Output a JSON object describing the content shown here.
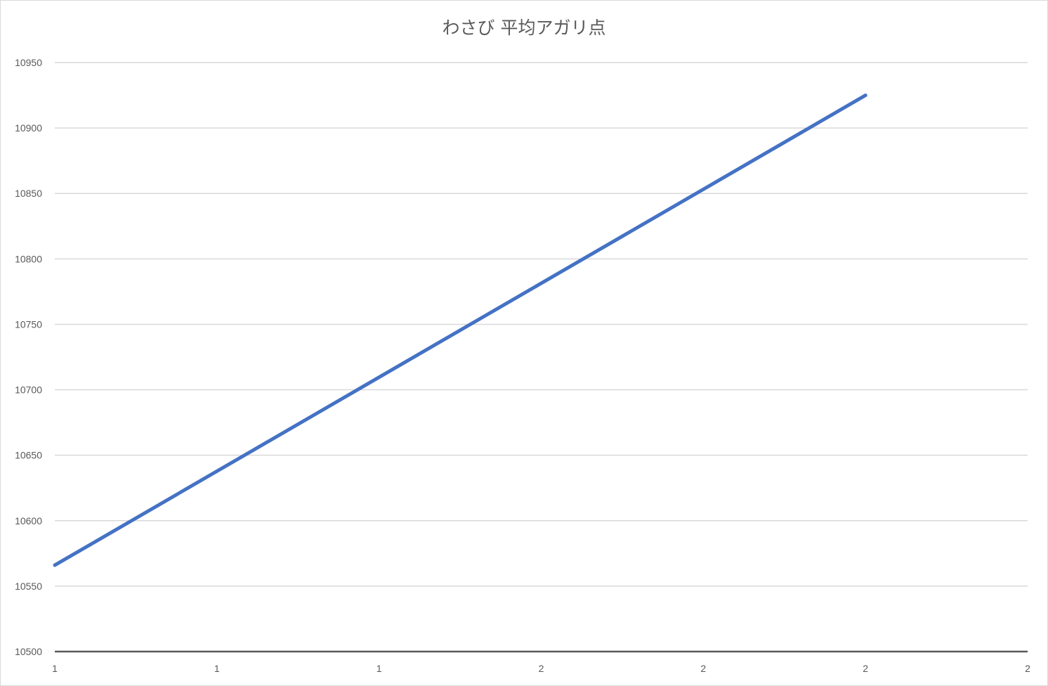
{
  "chart_data": {
    "type": "line",
    "title": "わさび 平均アガリ点",
    "xlabel": "",
    "ylabel": "",
    "x_tick_labels": [
      "1",
      "1",
      "1",
      "2",
      "2",
      "2",
      "2"
    ],
    "y_tick_labels": [
      "10500",
      "10550",
      "10600",
      "10650",
      "10700",
      "10750",
      "10800",
      "10850",
      "10900",
      "10950"
    ],
    "ylim": [
      10500,
      10950
    ],
    "grid": true,
    "legend": "none",
    "series": [
      {
        "color": "#4472C4",
        "points": [
          {
            "x": 1.0,
            "y": 10566
          },
          {
            "x": 2.0,
            "y": 10925
          }
        ]
      }
    ],
    "colors": {
      "line": "#4472C4",
      "grid": "#d9d9d9",
      "axis": "#595959",
      "text": "#595959"
    }
  }
}
